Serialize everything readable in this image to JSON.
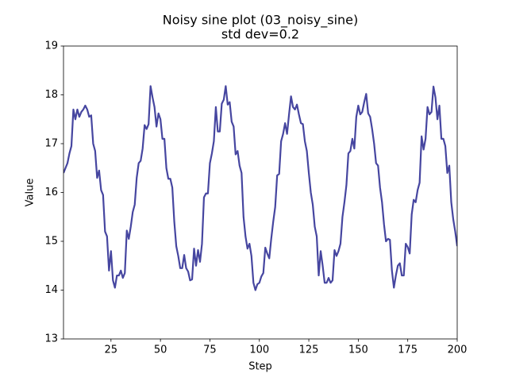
{
  "chart_data": {
    "type": "line",
    "title": "Noisy sine plot (03_noisy_sine)",
    "subtitle": "std dev=0.2",
    "x_label": "Step",
    "y_label": "Value",
    "color": "#4646a0",
    "xlim": [
      1,
      200
    ],
    "xticks": [
      25,
      50,
      75,
      100,
      125,
      150,
      175,
      200
    ],
    "ylim": [
      13,
      19
    ],
    "yticks": [
      13,
      14,
      15,
      16,
      17,
      18,
      19
    ],
    "x": [
      1,
      2,
      3,
      4,
      5,
      6,
      7,
      8,
      9,
      10,
      11,
      12,
      13,
      14,
      15,
      16,
      17,
      18,
      19,
      20,
      21,
      22,
      23,
      24,
      25,
      26,
      27,
      28,
      29,
      30,
      31,
      32,
      33,
      34,
      35,
      36,
      37,
      38,
      39,
      40,
      41,
      42,
      43,
      44,
      45,
      46,
      47,
      48,
      49,
      50,
      51,
      52,
      53,
      54,
      55,
      56,
      57,
      58,
      59,
      60,
      61,
      62,
      63,
      64,
      65,
      66,
      67,
      68,
      69,
      70,
      71,
      72,
      73,
      74,
      75,
      76,
      77,
      78,
      79,
      80,
      81,
      82,
      83,
      84,
      85,
      86,
      87,
      88,
      89,
      90,
      91,
      92,
      93,
      94,
      95,
      96,
      97,
      98,
      99,
      100,
      101,
      102,
      103,
      104,
      105,
      106,
      107,
      108,
      109,
      110,
      111,
      112,
      113,
      114,
      115,
      116,
      117,
      118,
      119,
      120,
      121,
      122,
      123,
      124,
      125,
      126,
      127,
      128,
      129,
      130,
      131,
      132,
      133,
      134,
      135,
      136,
      137,
      138,
      139,
      140,
      141,
      142,
      143,
      144,
      145,
      146,
      147,
      148,
      149,
      150,
      151,
      152,
      153,
      154,
      155,
      156,
      157,
      158,
      159,
      160,
      161,
      162,
      163,
      164,
      165,
      166,
      167,
      168,
      169,
      170,
      171,
      172,
      173,
      174,
      175,
      176,
      177,
      178,
      179,
      180,
      181,
      182,
      183,
      184,
      185,
      186,
      187,
      188,
      189,
      190,
      191,
      192,
      193,
      194,
      195,
      196,
      197,
      198,
      199,
      200
    ],
    "values": [
      16.4,
      16.5,
      16.6,
      16.8,
      16.95,
      17.7,
      17.5,
      17.7,
      17.55,
      17.65,
      17.7,
      17.78,
      17.7,
      17.55,
      17.58,
      17.0,
      16.85,
      16.3,
      16.45,
      16.05,
      15.95,
      15.2,
      15.1,
      14.4,
      14.8,
      14.2,
      14.05,
      14.3,
      14.3,
      14.4,
      14.25,
      14.35,
      15.22,
      15.05,
      15.3,
      15.6,
      15.75,
      16.3,
      16.6,
      16.65,
      16.9,
      17.38,
      17.3,
      17.4,
      18.18,
      17.95,
      17.75,
      17.35,
      17.62,
      17.5,
      17.1,
      17.1,
      16.5,
      16.28,
      16.28,
      16.1,
      15.4,
      14.9,
      14.7,
      14.45,
      14.45,
      14.72,
      14.45,
      14.38,
      14.2,
      14.22,
      14.85,
      14.5,
      14.82,
      14.58,
      14.95,
      15.9,
      15.98,
      15.98,
      16.6,
      16.8,
      17.05,
      17.75,
      17.25,
      17.25,
      17.82,
      17.9,
      18.18,
      17.8,
      17.85,
      17.45,
      17.35,
      16.78,
      16.85,
      16.55,
      16.4,
      15.5,
      15.1,
      14.85,
      14.95,
      14.7,
      14.15,
      14.0,
      14.12,
      14.15,
      14.28,
      14.35,
      14.87,
      14.75,
      14.65,
      15.05,
      15.4,
      15.7,
      16.35,
      16.38,
      17.05,
      17.2,
      17.42,
      17.2,
      17.6,
      17.97,
      17.75,
      17.7,
      17.8,
      17.6,
      17.42,
      17.4,
      17.05,
      16.85,
      16.4,
      16.0,
      15.75,
      15.3,
      15.1,
      14.3,
      14.8,
      14.5,
      14.15,
      14.15,
      14.25,
      14.15,
      14.2,
      14.82,
      14.7,
      14.8,
      14.95,
      15.5,
      15.8,
      16.15,
      16.8,
      16.85,
      17.1,
      16.9,
      17.55,
      17.78,
      17.6,
      17.65,
      17.85,
      18.02,
      17.62,
      17.55,
      17.3,
      17.0,
      16.6,
      16.55,
      16.1,
      15.8,
      15.35,
      15.0,
      15.05,
      15.03,
      14.4,
      14.05,
      14.3,
      14.5,
      14.55,
      14.3,
      14.3,
      14.95,
      14.88,
      14.75,
      15.55,
      15.85,
      15.8,
      16.05,
      16.2,
      17.15,
      16.88,
      17.1,
      17.75,
      17.6,
      17.65,
      18.17,
      17.95,
      17.5,
      17.78,
      17.1,
      17.1,
      16.95,
      16.4,
      16.55,
      15.8,
      15.45,
      15.2,
      14.9
    ]
  }
}
